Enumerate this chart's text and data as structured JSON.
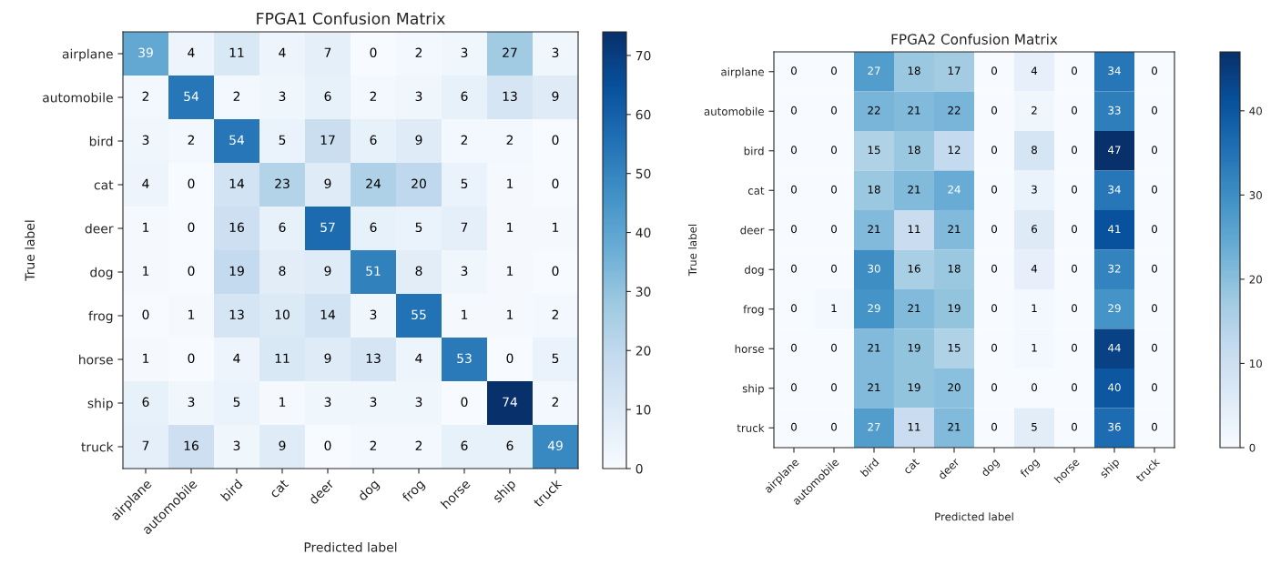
{
  "chart_data": [
    {
      "type": "heatmap",
      "title": "FPGA1 Confusion Matrix",
      "xlabel": "Predicted label",
      "ylabel": "True label",
      "categories": [
        "airplane",
        "automobile",
        "bird",
        "cat",
        "deer",
        "dog",
        "frog",
        "horse",
        "ship",
        "truck"
      ],
      "y_categories": [
        "airplane",
        "automobile",
        "bird",
        "cat",
        "deer",
        "dog",
        "frog",
        "horse",
        "ship",
        "truck"
      ],
      "cells": [
        [
          39,
          4,
          11,
          4,
          7,
          0,
          2,
          3,
          27,
          3
        ],
        [
          2,
          54,
          2,
          3,
          6,
          2,
          3,
          6,
          13,
          9
        ],
        [
          3,
          2,
          54,
          5,
          17,
          6,
          9,
          2,
          2,
          0
        ],
        [
          4,
          0,
          14,
          23,
          9,
          24,
          20,
          5,
          1,
          0
        ],
        [
          1,
          0,
          16,
          6,
          57,
          6,
          5,
          7,
          1,
          1
        ],
        [
          1,
          0,
          19,
          8,
          9,
          51,
          8,
          3,
          1,
          0
        ],
        [
          0,
          1,
          13,
          10,
          14,
          3,
          55,
          1,
          1,
          2
        ],
        [
          1,
          0,
          4,
          11,
          9,
          13,
          4,
          53,
          0,
          5
        ],
        [
          6,
          3,
          5,
          1,
          3,
          3,
          3,
          0,
          74,
          2
        ],
        [
          7,
          16,
          3,
          9,
          0,
          2,
          2,
          6,
          6,
          49
        ]
      ],
      "clim": [
        0,
        74
      ],
      "cticks": [
        0,
        10,
        20,
        30,
        40,
        50,
        60,
        70
      ],
      "data_labels": true
    },
    {
      "type": "heatmap",
      "title": "FPGA2 Confusion Matrix",
      "xlabel": "Predicted label",
      "ylabel": "True label",
      "categories": [
        "airplane",
        "automobile",
        "bird",
        "cat",
        "deer",
        "dog",
        "frog",
        "horse",
        "ship",
        "truck"
      ],
      "y_categories": [
        "airplane",
        "automobile",
        "bird",
        "cat",
        "deer",
        "dog",
        "frog",
        "horse",
        "ship",
        "truck"
      ],
      "cells": [
        [
          0,
          0,
          27,
          18,
          17,
          0,
          4,
          0,
          34,
          0
        ],
        [
          0,
          0,
          22,
          21,
          22,
          0,
          2,
          0,
          33,
          0
        ],
        [
          0,
          0,
          15,
          18,
          12,
          0,
          8,
          0,
          47,
          0
        ],
        [
          0,
          0,
          18,
          21,
          24,
          0,
          3,
          0,
          34,
          0
        ],
        [
          0,
          0,
          21,
          11,
          21,
          0,
          6,
          0,
          41,
          0
        ],
        [
          0,
          0,
          30,
          16,
          18,
          0,
          4,
          0,
          32,
          0
        ],
        [
          0,
          1,
          29,
          21,
          19,
          0,
          1,
          0,
          29,
          0
        ],
        [
          0,
          0,
          21,
          19,
          15,
          0,
          1,
          0,
          44,
          0
        ],
        [
          0,
          0,
          21,
          19,
          20,
          0,
          0,
          0,
          40,
          0
        ],
        [
          0,
          0,
          27,
          11,
          21,
          0,
          5,
          0,
          36,
          0
        ]
      ],
      "clim": [
        0,
        47
      ],
      "cticks": [
        0,
        10,
        20,
        30,
        40
      ],
      "data_labels": true
    }
  ]
}
